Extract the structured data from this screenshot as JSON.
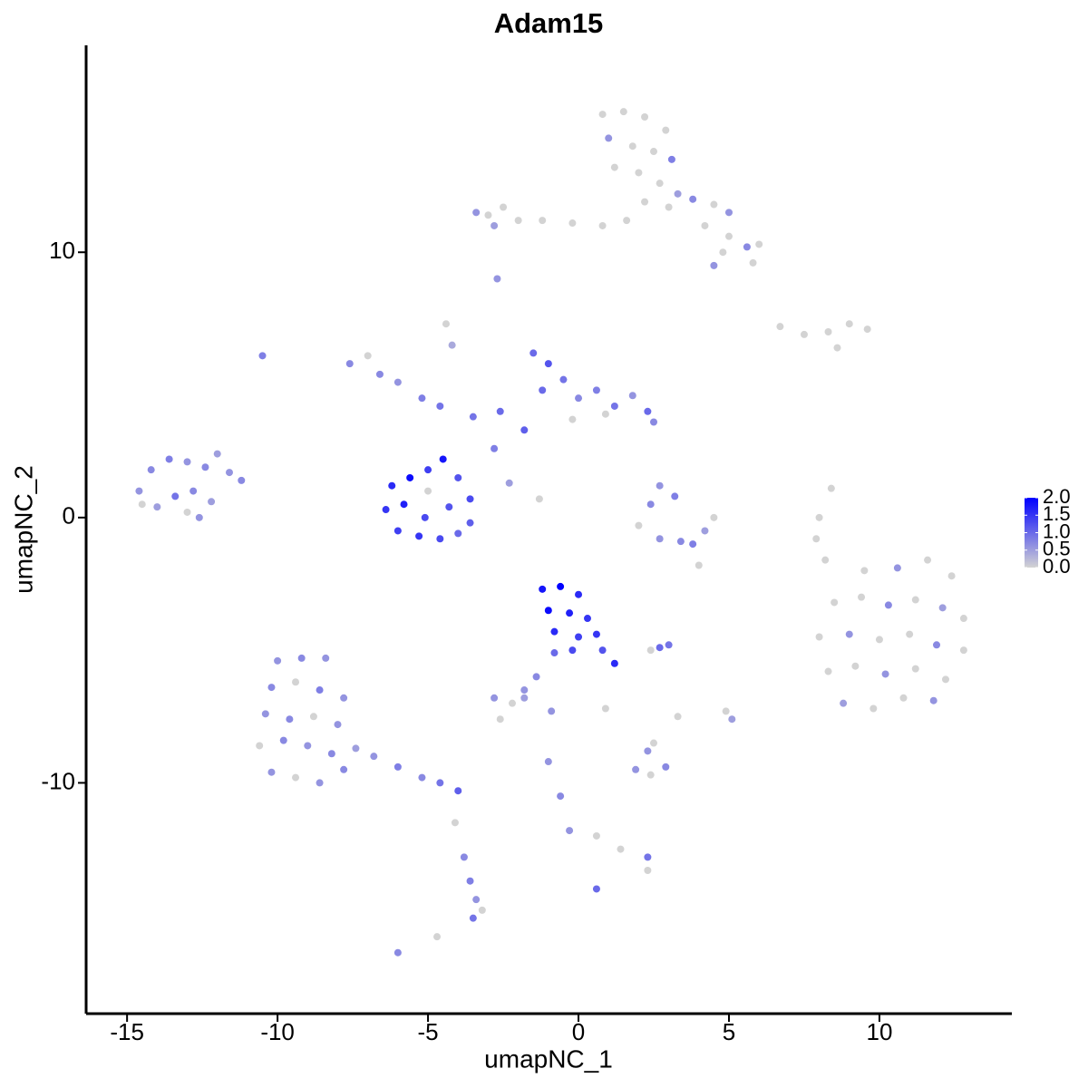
{
  "chart_data": {
    "type": "scatter",
    "title": "Adam15",
    "x_label": "umapNC_1",
    "y_label": "umapNC_2",
    "xlim": [
      -16.36,
      14.4
    ],
    "ylim": [
      -18.7,
      17.8
    ],
    "xticks": [
      -15,
      -10,
      -5,
      0,
      5,
      10
    ],
    "yticks": [
      -10,
      0,
      10
    ],
    "low_color": "#d3d3d3",
    "high_color": "#0000ff",
    "color_lim": [
      0,
      2
    ],
    "color_ticks": [
      {
        "value": 0,
        "label": "0.0"
      },
      {
        "value": 0.5,
        "label": "0.5"
      },
      {
        "value": 1,
        "label": "1.0"
      },
      {
        "value": 1.5,
        "label": "1.5"
      },
      {
        "value": 2,
        "label": "2.0"
      }
    ],
    "x": [
      0.8,
      1.5,
      2.2,
      2.9,
      1.0,
      1.8,
      2.5,
      3.1,
      1.2,
      2.0,
      2.7,
      3.3,
      2.2,
      3.0,
      3.8,
      4.5,
      5.0,
      4.2,
      5.0,
      5.6,
      4.8,
      5.8,
      6.0,
      4.5,
      -3.0,
      -2.5,
      -2.0,
      -1.2,
      -0.2,
      0.8,
      1.6,
      -3.4,
      -2.8,
      6.7,
      7.5,
      8.3,
      9.0,
      9.6,
      8.6,
      -2.7,
      -10.5,
      -7.6,
      -7.0,
      -6.6,
      -6.0,
      -5.2,
      -4.6,
      -4.2,
      -4.4,
      -3.5,
      -2.6,
      -2.8,
      -2.3,
      -1.3,
      -1.5,
      -1.0,
      -0.5,
      -1.2,
      0,
      0.6,
      1.2,
      1.8,
      2.3,
      2.5,
      -0.2,
      0.9,
      -1.8,
      -6.2,
      -5.6,
      -5.0,
      -4.5,
      -4.0,
      -3.6,
      -6.4,
      -5.8,
      -5.1,
      -4.3,
      -3.6,
      -6.0,
      -5.3,
      -4.6,
      -4.0,
      -5.0,
      -14.6,
      -14.2,
      -13.6,
      -13.0,
      -12.4,
      -12.0,
      -11.6,
      -11.2,
      -14.0,
      -13.4,
      -12.8,
      -12.2,
      -13.0,
      -12.6,
      -14.5,
      2.7,
      2.4,
      3.2,
      2.0,
      2.7,
      3.4,
      4.2,
      4.5,
      3.8,
      4.0,
      8.4,
      8.0,
      7.9,
      8.2,
      9.5,
      10.6,
      11.6,
      12.4,
      8.5,
      9.4,
      10.3,
      11.2,
      12.1,
      12.8,
      8.0,
      9.0,
      10.0,
      11.0,
      11.9,
      12.8,
      8.3,
      9.2,
      10.2,
      11.2,
      12.2,
      8.8,
      9.8,
      10.8,
      11.8,
      -1.2,
      -0.6,
      0.0,
      -1.0,
      -0.3,
      0.3,
      -0.8,
      0.0,
      0.6,
      -0.2,
      0.8,
      1.2,
      -0.8,
      -1.4,
      -1.8,
      2.7,
      3.0,
      2.4,
      -10.0,
      -9.2,
      -8.4,
      -10.2,
      -9.4,
      -8.6,
      -7.8,
      -10.4,
      -9.6,
      -8.8,
      -8.0,
      -10.6,
      -9.8,
      -9.0,
      -8.2,
      -7.4,
      -10.2,
      -9.4,
      -8.6,
      -7.8,
      -6.8,
      -6.0,
      -5.2,
      -4.6,
      -4.0,
      -4.1,
      -3.8,
      -3.6,
      -3.4,
      -3.5,
      -3.2,
      -6.0,
      -4.7,
      -2.8,
      -2.2,
      -1.8,
      -2.6,
      0.9,
      -0.9,
      1.9,
      2.4,
      2.9,
      2.5,
      2.3,
      -1.0,
      -0.6,
      -0.3,
      0.6,
      1.4,
      2.3,
      2.3,
      0.6,
      3.3,
      4.9,
      5.1
    ],
    "y": [
      15.2,
      15.3,
      15.1,
      14.6,
      14.3,
      14.0,
      13.8,
      13.5,
      13.2,
      13.0,
      12.6,
      12.2,
      11.9,
      11.7,
      12.0,
      11.8,
      11.5,
      11.0,
      10.6,
      10.2,
      10.0,
      9.6,
      10.3,
      9.5,
      11.4,
      11.7,
      11.2,
      11.2,
      11.1,
      11.0,
      11.2,
      11.5,
      11.0,
      7.2,
      6.9,
      7.0,
      7.3,
      7.1,
      6.4,
      9.0,
      6.1,
      5.8,
      6.1,
      5.4,
      5.1,
      4.5,
      4.2,
      6.5,
      7.3,
      3.8,
      4.0,
      2.6,
      1.3,
      0.7,
      6.2,
      5.8,
      5.2,
      4.8,
      4.5,
      4.8,
      4.2,
      4.6,
      4.0,
      3.6,
      3.7,
      3.9,
      3.3,
      1.2,
      1.5,
      1.8,
      2.2,
      1.5,
      0.7,
      0.3,
      0.5,
      0.0,
      0.4,
      -0.2,
      -0.5,
      -0.7,
      -0.8,
      -0.6,
      1.0,
      1.0,
      1.8,
      2.2,
      2.1,
      1.9,
      2.4,
      1.7,
      1.4,
      0.4,
      0.8,
      1.0,
      0.6,
      0.2,
      0.0,
      0.5,
      1.2,
      0.5,
      0.8,
      -0.3,
      -0.8,
      -0.9,
      -0.5,
      0.0,
      -1.0,
      -1.8,
      1.1,
      0.0,
      -0.8,
      -1.6,
      -2.0,
      -1.9,
      -1.6,
      -2.2,
      -3.2,
      -3.0,
      -3.3,
      -3.1,
      -3.4,
      -3.8,
      -4.5,
      -4.4,
      -4.6,
      -4.4,
      -4.8,
      -5.0,
      -5.8,
      -5.6,
      -5.9,
      -5.7,
      -6.1,
      -7.0,
      -7.2,
      -6.8,
      -6.9,
      -2.7,
      -2.6,
      -2.9,
      -3.5,
      -3.6,
      -3.8,
      -4.3,
      -4.5,
      -4.4,
      -5.0,
      -5.0,
      -5.5,
      -5.1,
      -6.0,
      -6.5,
      -4.9,
      -4.8,
      -5.0,
      -5.4,
      -5.3,
      -5.3,
      -6.4,
      -6.2,
      -6.5,
      -6.8,
      -7.4,
      -7.6,
      -7.5,
      -7.8,
      -8.6,
      -8.4,
      -8.6,
      -8.9,
      -8.7,
      -9.6,
      -9.8,
      -10.0,
      -9.5,
      -9.0,
      -9.4,
      -9.8,
      -10.0,
      -10.3,
      -11.5,
      -12.8,
      -13.7,
      -14.4,
      -15.1,
      -14.8,
      -16.4,
      -15.8,
      -6.8,
      -7.0,
      -6.8,
      -7.6,
      -7.2,
      -7.3,
      -9.5,
      -9.7,
      -9.4,
      -8.5,
      -8.8,
      -9.2,
      -10.5,
      -11.8,
      -12.0,
      -12.5,
      -12.8,
      -13.3,
      -14.0,
      -7.5,
      -7.3,
      -7.6
    ],
    "values": [
      0,
      0,
      0,
      0,
      0.6,
      0,
      0,
      0.8,
      0,
      0,
      0,
      0.5,
      0,
      0,
      0.7,
      0,
      0.6,
      0,
      0,
      0.7,
      0,
      0,
      0,
      0.6,
      0,
      0,
      0,
      0,
      0,
      0,
      0,
      0.6,
      0.5,
      0,
      0,
      0,
      0,
      0,
      0,
      0.6,
      0.8,
      0.7,
      0,
      0.7,
      0.6,
      0.8,
      0.9,
      0.4,
      0,
      0.9,
      1.0,
      0.8,
      0.5,
      0,
      1.0,
      1.2,
      0.9,
      1.0,
      0.7,
      0.8,
      0.9,
      0.6,
      1.0,
      0.7,
      0,
      0,
      1.1,
      1.6,
      1.9,
      1.4,
      1.8,
      1.2,
      1.3,
      1.5,
      1.7,
      1.3,
      1.2,
      1.1,
      1.4,
      1.5,
      1.3,
      1.0,
      0,
      0.6,
      0.7,
      0.8,
      0.6,
      0.7,
      0.5,
      0.6,
      0.7,
      0.5,
      0.9,
      0.7,
      0.5,
      0,
      0.6,
      0,
      0.6,
      0.7,
      0.8,
      0,
      0.6,
      0.7,
      0.5,
      0,
      0.8,
      0,
      0,
      0,
      0,
      0,
      0,
      0.6,
      0,
      0,
      0,
      0,
      0.7,
      0,
      0.5,
      0,
      0,
      0.6,
      0,
      0,
      0.7,
      0,
      0,
      0,
      0.6,
      0,
      0,
      0.5,
      0,
      0,
      0.6,
      1.8,
      2.0,
      1.6,
      1.9,
      1.7,
      1.5,
      1.6,
      1.4,
      1.5,
      1.3,
      1.2,
      1.6,
      1.0,
      0.7,
      0.6,
      1.0,
      0.9,
      0,
      0.6,
      0.7,
      0.6,
      0.7,
      0,
      0.8,
      0.6,
      0.6,
      0.7,
      0,
      0.6,
      0,
      0.7,
      0.6,
      0.7,
      0.5,
      0.6,
      0,
      0.6,
      0.7,
      0.6,
      0.8,
      0.7,
      0.9,
      1.1,
      0,
      0.7,
      0.8,
      0.6,
      0.9,
      0,
      0.7,
      0,
      0.6,
      0,
      0.5,
      0,
      0,
      0.6,
      0.6,
      0,
      0.7,
      0,
      0.6,
      0.6,
      0.7,
      0.6,
      0,
      0,
      0.9,
      0,
      1.0,
      0,
      0,
      0.5
    ]
  }
}
